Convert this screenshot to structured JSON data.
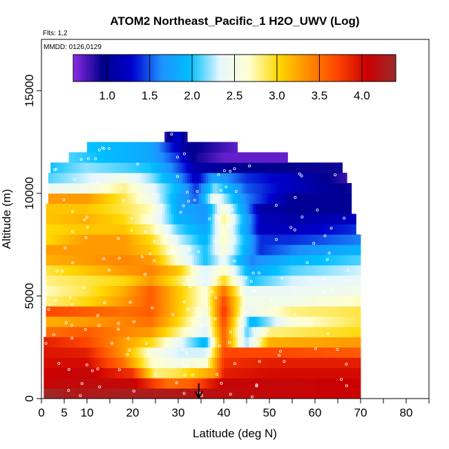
{
  "chart_data": {
    "type": "heatmap",
    "title": "ATOM2 Northeast_Pacific_1 H2O_UWV (Log)",
    "flights_label": "Flts: 1,2",
    "date_label": "MMDD: 0126,0129",
    "xlabel": "Latitude (deg N)",
    "ylabel": "Altitude (m)",
    "xlim": [
      0,
      85
    ],
    "ylim": [
      0,
      17500
    ],
    "x_ticks": [
      0,
      5,
      10,
      20,
      30,
      40,
      50,
      60,
      70,
      80
    ],
    "x_minor_ticks": [
      15,
      25,
      35,
      45,
      55,
      65,
      75,
      85
    ],
    "y_ticks": [
      0,
      5000,
      10000,
      15000
    ],
    "colorbar": {
      "range": [
        0.6,
        4.4
      ],
      "ticks": [
        1.0,
        1.5,
        2.0,
        2.5,
        3.0,
        3.5,
        4.0
      ],
      "tick_labels": [
        "1.0",
        "1.5",
        "2.0",
        "2.5",
        "3.0",
        "3.5",
        "4.0"
      ],
      "colors": [
        "#8a2be2",
        "#00008b",
        "#0000cd",
        "#1e90ff",
        "#00bfff",
        "#e6f7ff",
        "#ffffd0",
        "#ffd700",
        "#ff8c00",
        "#ff4500",
        "#cc0000",
        "#9b2a2a"
      ]
    },
    "marker": {
      "latitude": 34.5,
      "label": "arrow"
    },
    "altitude_bins": [
      {
        "alt": 250,
        "x0": 0.5,
        "x1": 70,
        "anchors": [
          [
            0.5,
            4.4
          ],
          [
            8,
            4.25
          ],
          [
            20,
            4.3
          ],
          [
            30,
            4.25
          ],
          [
            40,
            4.15
          ],
          [
            55,
            4.1
          ],
          [
            70,
            4.05
          ]
        ]
      },
      {
        "alt": 750,
        "x0": 0.5,
        "x1": 70,
        "anchors": [
          [
            0.5,
            4.1
          ],
          [
            10,
            4.15
          ],
          [
            20,
            4.1
          ],
          [
            28,
            3.5
          ],
          [
            33,
            3.6
          ],
          [
            40,
            4.1
          ],
          [
            55,
            4.1
          ],
          [
            70,
            4.05
          ]
        ]
      },
      {
        "alt": 1250,
        "x0": 0.5,
        "x1": 70,
        "anchors": [
          [
            0.5,
            4.05
          ],
          [
            10,
            4.1
          ],
          [
            20,
            3.8
          ],
          [
            25,
            2.8
          ],
          [
            30,
            2.9
          ],
          [
            38,
            3.3
          ],
          [
            40,
            3.9
          ],
          [
            50,
            4.0
          ],
          [
            70,
            4.0
          ]
        ]
      },
      {
        "alt": 1750,
        "x0": 0.5,
        "x1": 70,
        "anchors": [
          [
            0.5,
            4.0
          ],
          [
            10,
            4.0
          ],
          [
            18,
            3.5
          ],
          [
            24,
            2.7
          ],
          [
            30,
            2.5
          ],
          [
            36,
            2.6
          ],
          [
            40,
            3.8
          ],
          [
            50,
            3.9
          ],
          [
            70,
            3.9
          ]
        ]
      },
      {
        "alt": 2250,
        "x0": 0.5,
        "x1": 70,
        "anchors": [
          [
            0.5,
            3.95
          ],
          [
            10,
            3.9
          ],
          [
            18,
            3.3
          ],
          [
            24,
            2.6
          ],
          [
            30,
            2.3
          ],
          [
            36,
            2.3
          ],
          [
            40,
            3.7
          ],
          [
            50,
            3.7
          ],
          [
            70,
            3.6
          ]
        ]
      },
      {
        "alt": 2750,
        "x0": 0.5,
        "x1": 70,
        "anchors": [
          [
            0.5,
            3.9
          ],
          [
            10,
            3.7
          ],
          [
            18,
            3.3
          ],
          [
            24,
            3.0
          ],
          [
            30,
            2.4
          ],
          [
            36,
            1.9
          ],
          [
            40,
            3.6
          ],
          [
            45,
            2.2
          ],
          [
            50,
            3.2
          ],
          [
            70,
            3.3
          ]
        ]
      },
      {
        "alt": 3250,
        "x0": 1,
        "x1": 70,
        "anchors": [
          [
            1,
            3.5
          ],
          [
            10,
            3.6
          ],
          [
            18,
            3.4
          ],
          [
            24,
            3.3
          ],
          [
            30,
            2.8
          ],
          [
            36,
            2.3
          ],
          [
            40,
            3.6
          ],
          [
            45,
            2.1
          ],
          [
            50,
            2.8
          ],
          [
            70,
            3.0
          ]
        ]
      },
      {
        "alt": 3750,
        "x0": 1,
        "x1": 70,
        "anchors": [
          [
            1,
            3.2
          ],
          [
            10,
            3.3
          ],
          [
            18,
            3.4
          ],
          [
            24,
            3.5
          ],
          [
            30,
            3.0
          ],
          [
            36,
            2.4
          ],
          [
            40,
            3.7
          ],
          [
            46,
            1.9
          ],
          [
            55,
            2.6
          ],
          [
            70,
            2.9
          ]
        ]
      },
      {
        "alt": 4250,
        "x0": 1,
        "x1": 70,
        "anchors": [
          [
            1,
            3.7
          ],
          [
            10,
            3.6
          ],
          [
            18,
            3.5
          ],
          [
            24,
            3.6
          ],
          [
            30,
            3.1
          ],
          [
            36,
            2.5
          ],
          [
            40,
            3.8
          ],
          [
            45,
            2.4
          ],
          [
            55,
            2.8
          ],
          [
            70,
            2.9
          ]
        ]
      },
      {
        "alt": 4750,
        "x0": 1,
        "x1": 70,
        "anchors": [
          [
            1,
            2.8
          ],
          [
            10,
            3.0
          ],
          [
            18,
            3.3
          ],
          [
            24,
            3.6
          ],
          [
            30,
            3.1
          ],
          [
            36,
            2.6
          ],
          [
            40,
            3.7
          ],
          [
            45,
            2.5
          ],
          [
            55,
            2.5
          ],
          [
            70,
            2.7
          ]
        ]
      },
      {
        "alt": 5250,
        "x0": 1,
        "x1": 70,
        "anchors": [
          [
            1,
            2.7
          ],
          [
            10,
            2.9
          ],
          [
            18,
            3.2
          ],
          [
            24,
            3.6
          ],
          [
            30,
            3.1
          ],
          [
            36,
            2.6
          ],
          [
            40,
            3.5
          ],
          [
            45,
            2.4
          ],
          [
            55,
            2.4
          ],
          [
            70,
            2.5
          ]
        ]
      },
      {
        "alt": 5750,
        "x0": 1,
        "x1": 70,
        "anchors": [
          [
            1,
            2.8
          ],
          [
            10,
            2.9
          ],
          [
            18,
            3.0
          ],
          [
            24,
            3.3
          ],
          [
            30,
            2.9
          ],
          [
            36,
            2.3
          ],
          [
            40,
            3.0
          ],
          [
            46,
            2.0
          ],
          [
            55,
            2.3
          ],
          [
            70,
            2.4
          ]
        ]
      },
      {
        "alt": 6250,
        "x0": 1,
        "x1": 70,
        "anchors": [
          [
            1,
            2.9
          ],
          [
            10,
            3.1
          ],
          [
            18,
            3.3
          ],
          [
            24,
            3.4
          ],
          [
            30,
            3.1
          ],
          [
            36,
            2.3
          ],
          [
            40,
            2.7
          ],
          [
            46,
            1.8
          ],
          [
            55,
            2.1
          ],
          [
            70,
            2.3
          ]
        ]
      },
      {
        "alt": 6750,
        "x0": 1,
        "x1": 70,
        "anchors": [
          [
            1,
            3.2
          ],
          [
            10,
            3.3
          ],
          [
            18,
            3.4
          ],
          [
            24,
            3.3
          ],
          [
            30,
            2.6
          ],
          [
            36,
            2.0
          ],
          [
            40,
            2.4
          ],
          [
            46,
            1.6
          ],
          [
            55,
            1.9
          ],
          [
            70,
            2.1
          ]
        ]
      },
      {
        "alt": 7250,
        "x0": 1,
        "x1": 70,
        "anchors": [
          [
            1,
            3.3
          ],
          [
            10,
            3.3
          ],
          [
            18,
            3.3
          ],
          [
            24,
            3.1
          ],
          [
            30,
            2.5
          ],
          [
            36,
            2.0
          ],
          [
            40,
            2.6
          ],
          [
            48,
            1.4
          ],
          [
            55,
            1.6
          ],
          [
            70,
            1.9
          ]
        ]
      },
      {
        "alt": 7750,
        "x0": 1,
        "x1": 70,
        "anchors": [
          [
            1,
            3.0
          ],
          [
            10,
            3.3
          ],
          [
            18,
            3.3
          ],
          [
            24,
            3.0
          ],
          [
            30,
            2.3
          ],
          [
            36,
            1.9
          ],
          [
            40,
            2.7
          ],
          [
            48,
            1.4
          ],
          [
            55,
            1.4
          ],
          [
            70,
            1.6
          ]
        ]
      },
      {
        "alt": 8250,
        "x0": 1,
        "x1": 69,
        "anchors": [
          [
            1,
            3.0
          ],
          [
            10,
            3.1
          ],
          [
            18,
            3.1
          ],
          [
            24,
            2.8
          ],
          [
            30,
            2.1
          ],
          [
            36,
            1.8
          ],
          [
            40,
            2.7
          ],
          [
            48,
            1.2
          ],
          [
            55,
            1.2
          ],
          [
            69,
            1.4
          ]
        ]
      },
      {
        "alt": 8750,
        "x0": 1,
        "x1": 69,
        "anchors": [
          [
            1,
            3.1
          ],
          [
            10,
            3.2
          ],
          [
            18,
            3.0
          ],
          [
            24,
            2.6
          ],
          [
            30,
            1.9
          ],
          [
            36,
            1.7
          ],
          [
            40,
            2.8
          ],
          [
            48,
            1.2
          ],
          [
            55,
            1.1
          ],
          [
            69,
            1.2
          ]
        ]
      },
      {
        "alt": 9250,
        "x0": 1,
        "x1": 68,
        "anchors": [
          [
            1,
            3.1
          ],
          [
            10,
            3.1
          ],
          [
            18,
            2.9
          ],
          [
            24,
            2.7
          ],
          [
            30,
            1.8
          ],
          [
            36,
            1.7
          ],
          [
            40,
            2.6
          ],
          [
            48,
            1.1
          ],
          [
            55,
            1.0
          ],
          [
            68,
            1.0
          ]
        ]
      },
      {
        "alt": 9750,
        "x0": 1.5,
        "x1": 68,
        "anchors": [
          [
            1.5,
            3.3
          ],
          [
            10,
            3.3
          ],
          [
            18,
            2.9
          ],
          [
            24,
            2.5
          ],
          [
            30,
            1.8
          ],
          [
            34,
            1.5
          ],
          [
            38,
            2.5
          ],
          [
            45,
            1.6
          ],
          [
            55,
            1.0
          ],
          [
            68,
            1.0
          ]
        ]
      },
      {
        "alt": 10250,
        "x0": 1.5,
        "x1": 68,
        "anchors": [
          [
            1.5,
            2.4
          ],
          [
            10,
            2.5
          ],
          [
            18,
            2.8
          ],
          [
            24,
            2.4
          ],
          [
            30,
            1.9
          ],
          [
            34,
            1.4
          ],
          [
            38,
            2.2
          ],
          [
            45,
            1.5
          ],
          [
            55,
            1.2
          ],
          [
            68,
            0.9
          ]
        ]
      },
      {
        "alt": 10750,
        "x0": 1.5,
        "x1": 67,
        "anchors": [
          [
            1.5,
            2.1
          ],
          [
            10,
            2.3
          ],
          [
            18,
            2.5
          ],
          [
            24,
            2.2
          ],
          [
            30,
            1.7
          ],
          [
            34,
            1.2
          ],
          [
            38,
            1.8
          ],
          [
            45,
            1.4
          ],
          [
            55,
            1.2
          ],
          [
            67,
            0.8
          ]
        ]
      },
      {
        "alt": 11250,
        "x0": 2,
        "x1": 66,
        "anchors": [
          [
            2,
            2.0
          ],
          [
            10,
            2.2
          ],
          [
            18,
            2.1
          ],
          [
            24,
            2.0
          ],
          [
            30,
            1.5
          ],
          [
            34,
            1.1
          ],
          [
            40,
            1.0
          ],
          [
            50,
            0.95
          ],
          [
            66,
            0.9
          ]
        ]
      },
      {
        "alt": 11750,
        "x0": 6,
        "x1": 54,
        "anchors": [
          [
            6,
            2.1
          ],
          [
            12,
            2.0
          ],
          [
            18,
            1.9
          ],
          [
            24,
            1.8
          ],
          [
            30,
            1.4
          ],
          [
            34,
            0.9
          ],
          [
            40,
            0.7
          ],
          [
            54,
            0.7
          ]
        ]
      },
      {
        "alt": 12250,
        "x0": 10,
        "x1": 43,
        "anchors": [
          [
            10,
            2.0
          ],
          [
            18,
            1.9
          ],
          [
            24,
            1.8
          ],
          [
            30,
            1.2
          ],
          [
            32,
            1.0
          ],
          [
            43,
            0.7
          ]
        ]
      },
      {
        "alt": 12750,
        "x0": 27,
        "x1": 32,
        "anchors": [
          [
            27,
            0.8
          ],
          [
            30,
            1.3
          ],
          [
            32,
            0.8
          ]
        ]
      }
    ]
  }
}
